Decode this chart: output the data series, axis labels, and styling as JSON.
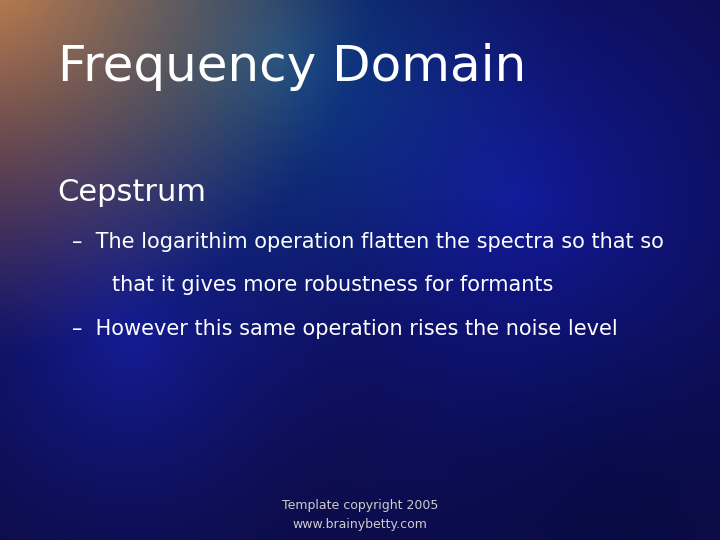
{
  "title": "Frequency Domain",
  "subtitle": "Cepstrum",
  "bullet1_dash": "–",
  "bullet1_line1": "The logarithim operation flatten the spectra so that so",
  "bullet1_line2": "that it gives more robustness for formants",
  "bullet2_dash": "–",
  "bullet2": "However this same operation rises the noise level",
  "footer_line1": "Template copyright 2005",
  "footer_line2": "www.brainybetty.com",
  "title_color": "#ffffff",
  "subtitle_color": "#ffffff",
  "bullet_color": "#ffffff",
  "footer_color": "#cccccc",
  "title_fontsize": 36,
  "subtitle_fontsize": 22,
  "bullet_fontsize": 15,
  "footer_fontsize": 9,
  "bg_base": [
    0.04,
    0.04,
    0.32
  ]
}
